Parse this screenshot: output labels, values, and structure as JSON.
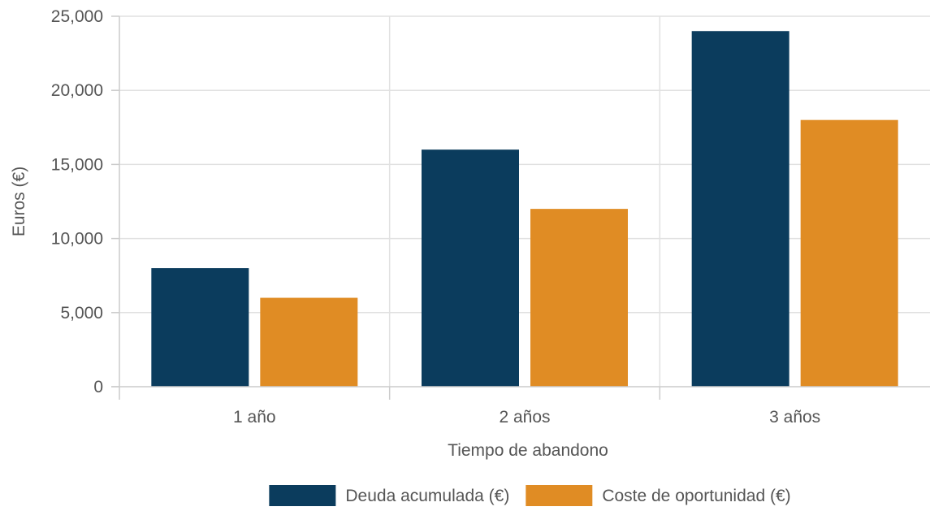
{
  "chart_data": {
    "type": "bar",
    "categories": [
      "1 año",
      "2 años",
      "3 años"
    ],
    "series": [
      {
        "name": "Deuda acumulada (€)",
        "color": "#0b3c5d",
        "values": [
          8000,
          16000,
          24000
        ]
      },
      {
        "name": "Coste de oportunidad (€)",
        "color": "#e08c24",
        "values": [
          6000,
          12000,
          18000
        ]
      }
    ],
    "xlabel": "Tiempo de abandono",
    "ylabel": "Euros (€)",
    "ylim": [
      0,
      25000
    ],
    "yticks": [
      0,
      5000,
      10000,
      15000,
      20000,
      25000
    ],
    "ytick_labels": [
      "0",
      "5,000",
      "10,000",
      "15,000",
      "20,000",
      "25,000"
    ],
    "grid": true,
    "legend_position": "bottom"
  }
}
